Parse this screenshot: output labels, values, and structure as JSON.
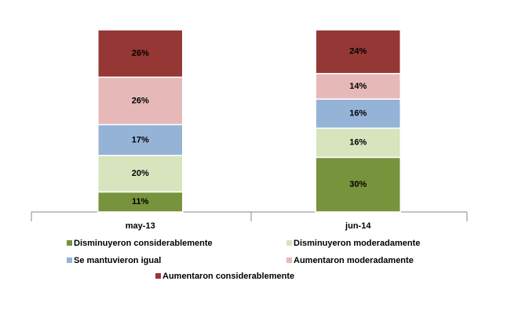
{
  "chart_data": {
    "type": "stacked-bar",
    "categories": [
      "may-13",
      "jun-14"
    ],
    "ylim": [
      0,
      100
    ],
    "legend": "bottom",
    "series": [
      {
        "name": "Disminuyeron considerablemente",
        "color": "#77933c",
        "values": [
          11,
          30
        ],
        "value_labels": [
          "11%",
          "30%"
        ]
      },
      {
        "name": "Disminuyeron moderadamente",
        "color": "#d7e4bd",
        "values": [
          20,
          16
        ],
        "value_labels": [
          "20%",
          "16%"
        ]
      },
      {
        "name": "Se mantuvieron igual",
        "color": "#95b3d7",
        "values": [
          17,
          16
        ],
        "value_labels": [
          "17%",
          "16%"
        ]
      },
      {
        "name": "Aumentaron moderadamente",
        "color": "#e6b9b8",
        "values": [
          26,
          14
        ],
        "value_labels": [
          "26%",
          "14%"
        ]
      },
      {
        "name": "Aumentaron considerablemente",
        "color": "#953735",
        "values": [
          26,
          24
        ],
        "value_labels": [
          "26%",
          "24%"
        ]
      }
    ]
  }
}
